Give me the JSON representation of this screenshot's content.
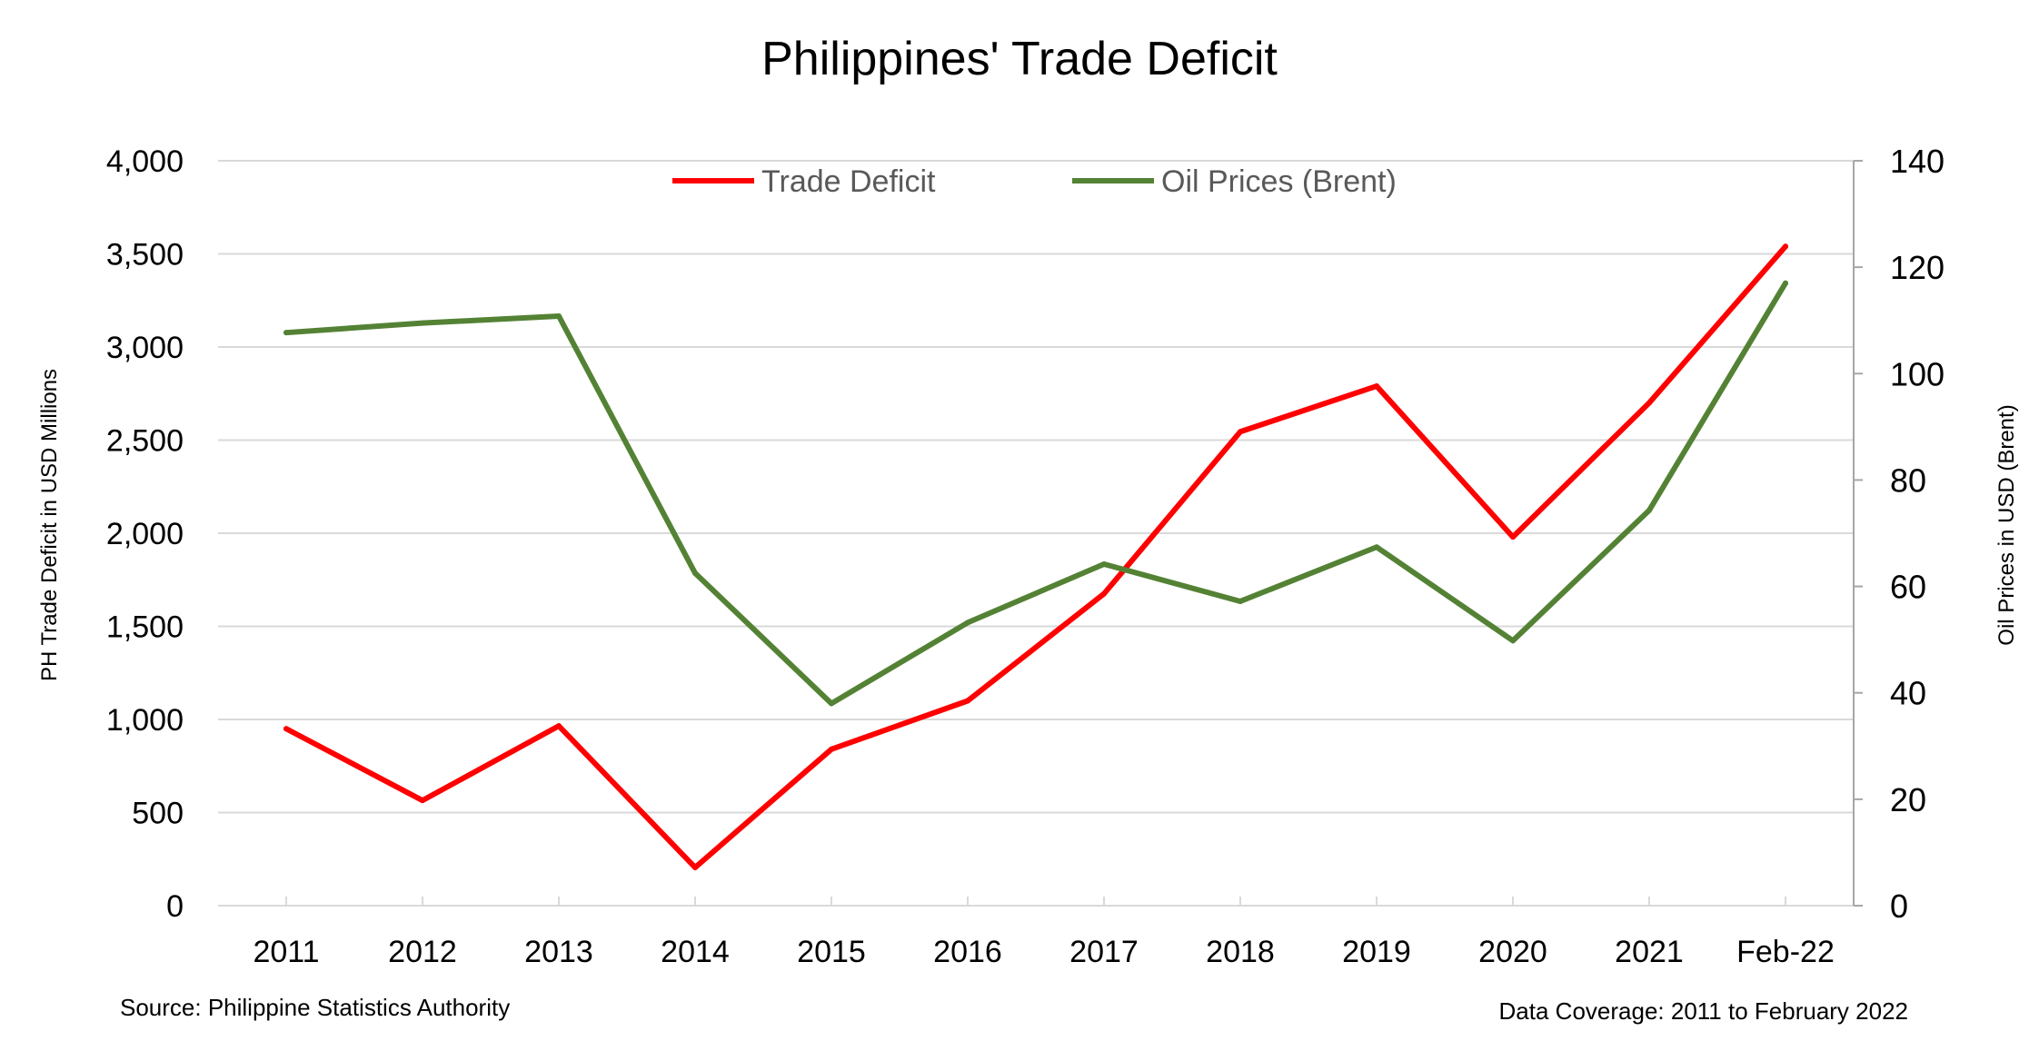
{
  "chart_data": {
    "type": "line",
    "title": "Philippines' Trade Deficit",
    "categories": [
      "2011",
      "2012",
      "2013",
      "2014",
      "2015",
      "2016",
      "2017",
      "2018",
      "2019",
      "2020",
      "2021",
      "Feb-22"
    ],
    "y_left": {
      "label": "PH Trade Deficit in USD Millions",
      "range": [
        0,
        4000
      ],
      "ticks": [
        "0",
        "500",
        "1,000",
        "1,500",
        "2,000",
        "2,500",
        "3,000",
        "3,500",
        "4,000"
      ]
    },
    "y_right": {
      "label": "Oil Prices in USD (Brent)",
      "range": [
        0,
        140
      ],
      "ticks": [
        "0",
        "20",
        "40",
        "60",
        "80",
        "100",
        "120",
        "140"
      ]
    },
    "grid": true,
    "legend_position": "top-center",
    "series": [
      {
        "name": "Trade Deficit",
        "axis": "left",
        "color": "#ff0000",
        "values": [
          950,
          565,
          965,
          205,
          840,
          1100,
          1675,
          2545,
          2790,
          1980,
          2700,
          3540
        ]
      },
      {
        "name": "Oil Prices (Brent)",
        "axis": "right",
        "color": "#548235",
        "values": [
          107.7,
          109.5,
          110.8,
          62.5,
          38.0,
          53.2,
          64.2,
          57.2,
          67.4,
          49.8,
          74.3,
          117.0
        ]
      }
    ],
    "source_note": "Source: Philippine Statistics Authority",
    "coverage_note": "Data Coverage: 2011 to February 2022"
  }
}
